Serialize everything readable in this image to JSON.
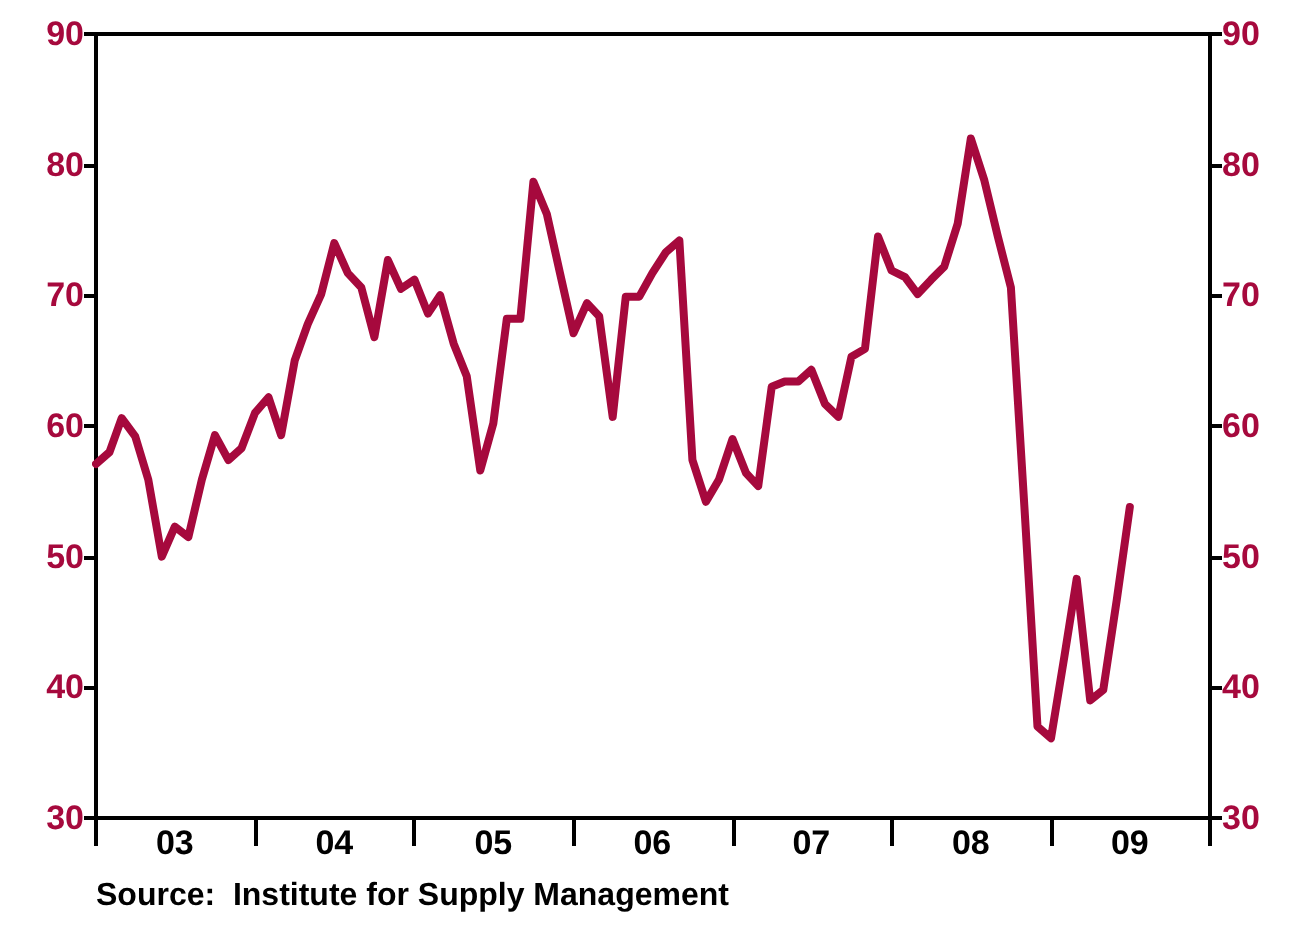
{
  "chart_data": {
    "type": "line",
    "x": [
      "2003-01",
      "2003-02",
      "2003-03",
      "2003-04",
      "2003-05",
      "2003-06",
      "2003-07",
      "2003-08",
      "2003-09",
      "2003-10",
      "2003-11",
      "2003-12",
      "2004-01",
      "2004-02",
      "2004-03",
      "2004-04",
      "2004-05",
      "2004-06",
      "2004-07",
      "2004-08",
      "2004-09",
      "2004-10",
      "2004-11",
      "2004-12",
      "2005-01",
      "2005-02",
      "2005-03",
      "2005-04",
      "2005-05",
      "2005-06",
      "2005-07",
      "2005-08",
      "2005-09",
      "2005-10",
      "2005-11",
      "2005-12",
      "2006-01",
      "2006-02",
      "2006-03",
      "2006-04",
      "2006-05",
      "2006-06",
      "2006-07",
      "2006-08",
      "2006-09",
      "2006-10",
      "2006-11",
      "2006-12",
      "2007-01",
      "2007-02",
      "2007-03",
      "2007-04",
      "2007-05",
      "2007-06",
      "2007-07",
      "2007-08",
      "2007-09",
      "2007-10",
      "2007-11",
      "2007-12",
      "2008-01",
      "2008-02",
      "2008-03",
      "2008-04",
      "2008-05",
      "2008-06",
      "2008-07",
      "2008-08",
      "2008-09",
      "2008-10",
      "2008-11",
      "2008-12",
      "2009-01",
      "2009-02",
      "2009-03",
      "2009-04",
      "2009-05",
      "2009-06",
      "2009-07"
    ],
    "series": [
      {
        "color": "#a6093d",
        "values": [
          57.1,
          58,
          60.6,
          59.2,
          55.9,
          50.0,
          52.3,
          51.5,
          55.9,
          59.3,
          57.4,
          58.3,
          61.0,
          62.2,
          59.3,
          65.0,
          67.8,
          70.1,
          74.0,
          71.7,
          70.6,
          66.8,
          72.7,
          70.5,
          71.2,
          68.6,
          70.0,
          66.3,
          63.8,
          56.6,
          60.2,
          68.2,
          68.2,
          78.7,
          76.2,
          71.7,
          67.1,
          69.4,
          68.4,
          60.7,
          69.9,
          69.9,
          71.7,
          73.3,
          74.2,
          57.4,
          54.2,
          55.9,
          59.0,
          56.4,
          55.4,
          63.0,
          63.4,
          63.4,
          64.3,
          61.7,
          60.7,
          65.3,
          65.9,
          74.5,
          71.9,
          71.4,
          70.1,
          71.2,
          72.2,
          75.5,
          82.0,
          78.8,
          74.5,
          70.6,
          53.8,
          37.0,
          36.1,
          42.4,
          48.3,
          39.0,
          39.8,
          46.7,
          53.8
        ]
      }
    ],
    "xlim": [
      "2003-01",
      "2010-01"
    ],
    "xticks": [
      {
        "value": "2003-01",
        "label": null
      },
      {
        "value": "2003-07",
        "label": "03"
      },
      {
        "value": "2004-01",
        "label": null
      },
      {
        "value": "2004-07",
        "label": "04"
      },
      {
        "value": "2005-01",
        "label": null
      },
      {
        "value": "2005-07",
        "label": "05"
      },
      {
        "value": "2006-01",
        "label": null
      },
      {
        "value": "2006-07",
        "label": "06"
      },
      {
        "value": "2007-01",
        "label": null
      },
      {
        "value": "2007-07",
        "label": "07"
      },
      {
        "value": "2008-01",
        "label": null
      },
      {
        "value": "2008-07",
        "label": "08"
      },
      {
        "value": "2009-01",
        "label": null
      },
      {
        "value": "2009-07",
        "label": "09"
      },
      {
        "value": "2010-01",
        "label": null
      }
    ],
    "ylim": [
      30,
      90
    ],
    "yticks": [
      30,
      40,
      50,
      60,
      70,
      80,
      90
    ],
    "y2lim": [
      30,
      90
    ],
    "y2ticks": [
      30,
      40,
      50,
      60,
      70,
      80,
      90
    ],
    "grid": false,
    "marker": "none",
    "line_style": "solid",
    "annotations": [
      "Source:  Institute for Supply Management"
    ]
  }
}
